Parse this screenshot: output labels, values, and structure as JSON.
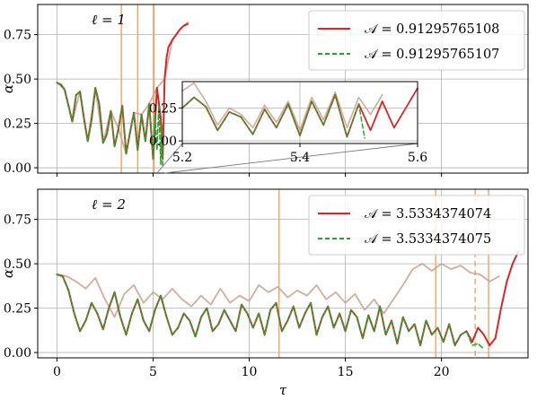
{
  "chart_data": [
    {
      "type": "line",
      "panel_label": "ℓ = 1",
      "xlabel": "",
      "ylabel": "α",
      "xlim": [
        -1.0,
        24.5
      ],
      "ylim": [
        -0.03,
        0.92
      ],
      "x_ticks": [
        0,
        5,
        10,
        15,
        20
      ],
      "y_ticks": [
        0.0,
        0.25,
        0.5,
        0.75
      ],
      "y_tick_labels": [
        "0.00",
        "0.25",
        "0.50",
        "0.75"
      ],
      "grid": true,
      "legend_position": "top-right",
      "vertical_lines": [
        3.35,
        4.2,
        5.05
      ],
      "series": [
        {
          "name": "𝒜 = 0.91295765108",
          "color": "#d62728",
          "style": "solid",
          "x": [
            0.0,
            0.2,
            0.4,
            0.6,
            0.8,
            1.0,
            1.2,
            1.4,
            1.6,
            1.8,
            2.0,
            2.2,
            2.4,
            2.6,
            2.8,
            3.0,
            3.2,
            3.4,
            3.6,
            3.8,
            4.0,
            4.2,
            4.4,
            4.6,
            4.8,
            5.0,
            5.2,
            5.4,
            5.5,
            5.6,
            5.7,
            5.8,
            6.0,
            6.2,
            6.4,
            6.6,
            6.8
          ],
          "y": [
            0.48,
            0.47,
            0.44,
            0.35,
            0.26,
            0.41,
            0.43,
            0.28,
            0.15,
            0.27,
            0.45,
            0.36,
            0.14,
            0.19,
            0.32,
            0.12,
            0.22,
            0.35,
            0.08,
            0.2,
            0.31,
            0.1,
            0.3,
            0.15,
            0.36,
            0.05,
            0.45,
            0.28,
            0.05,
            0.5,
            0.62,
            0.68,
            0.72,
            0.75,
            0.78,
            0.8,
            0.81
          ]
        },
        {
          "name": "𝒜 = 0.91295765107",
          "color": "#2ca02c",
          "style": "dashed",
          "x": [
            0.0,
            0.2,
            0.4,
            0.6,
            0.8,
            1.0,
            1.2,
            1.4,
            1.6,
            1.8,
            2.0,
            2.2,
            2.4,
            2.6,
            2.8,
            3.0,
            3.2,
            3.4,
            3.6,
            3.8,
            4.0,
            4.2,
            4.4,
            4.6,
            4.8,
            5.0,
            5.1,
            5.2,
            5.3,
            5.4,
            5.45,
            5.5
          ],
          "y": [
            0.48,
            0.47,
            0.44,
            0.35,
            0.26,
            0.41,
            0.43,
            0.28,
            0.15,
            0.27,
            0.45,
            0.36,
            0.14,
            0.19,
            0.32,
            0.12,
            0.22,
            0.35,
            0.08,
            0.2,
            0.31,
            0.1,
            0.3,
            0.15,
            0.36,
            0.05,
            0.3,
            0.1,
            0.35,
            0.02,
            0.25,
            0.0
          ]
        },
        {
          "name": "",
          "color": "#c8a08c",
          "style": "solid",
          "x": [
            0.0,
            0.4,
            0.8,
            1.2,
            1.6,
            2.0,
            2.4,
            2.8,
            3.2,
            3.6,
            4.0,
            4.4,
            4.8,
            5.2,
            5.6,
            6.0,
            6.4,
            6.8
          ],
          "y": [
            0.48,
            0.44,
            0.26,
            0.43,
            0.15,
            0.45,
            0.14,
            0.32,
            0.22,
            0.08,
            0.31,
            0.3,
            0.36,
            0.45,
            0.5,
            0.72,
            0.78,
            0.82
          ]
        }
      ],
      "inset": {
        "xlim": [
          5.2,
          5.6
        ],
        "ylim": [
          -0.02,
          0.45
        ],
        "x_ticks": [
          5.2,
          5.4,
          5.6
        ],
        "x_tick_labels": [
          "5.2",
          "5.4",
          "5.6"
        ],
        "y_ticks": [
          0.0,
          0.25
        ],
        "y_tick_labels": [
          "0.00",
          "0.25"
        ],
        "series": [
          {
            "name": "",
            "color": "#d62728",
            "style": "solid",
            "x": [
              5.2,
              5.22,
              5.24,
              5.26,
              5.28,
              5.3,
              5.32,
              5.34,
              5.36,
              5.38,
              5.4,
              5.42,
              5.44,
              5.46,
              5.48,
              5.5,
              5.52,
              5.54,
              5.56,
              5.58,
              5.6
            ],
            "y": [
              0.25,
              0.33,
              0.26,
              0.08,
              0.22,
              0.18,
              0.05,
              0.24,
              0.1,
              0.28,
              0.04,
              0.3,
              0.12,
              0.35,
              0.03,
              0.28,
              0.08,
              0.3,
              0.1,
              0.25,
              0.4
            ]
          },
          {
            "name": "",
            "color": "#2ca02c",
            "style": "dashed",
            "x": [
              5.2,
              5.22,
              5.24,
              5.26,
              5.28,
              5.3,
              5.32,
              5.34,
              5.36,
              5.38,
              5.4,
              5.42,
              5.44,
              5.46,
              5.48,
              5.5,
              5.51
            ],
            "y": [
              0.25,
              0.33,
              0.26,
              0.08,
              0.22,
              0.18,
              0.05,
              0.24,
              0.1,
              0.28,
              0.04,
              0.3,
              0.12,
              0.35,
              0.03,
              0.28,
              0.02
            ]
          },
          {
            "name": "",
            "color": "#c8a08c",
            "style": "solid",
            "x": [
              5.2,
              5.22,
              5.24,
              5.26,
              5.28,
              5.3,
              5.32,
              5.34,
              5.36,
              5.38,
              5.4,
              5.42,
              5.44,
              5.46,
              5.48,
              5.5,
              5.52,
              5.54
            ],
            "y": [
              0.38,
              0.44,
              0.3,
              0.12,
              0.25,
              0.2,
              0.1,
              0.27,
              0.14,
              0.3,
              0.08,
              0.33,
              0.16,
              0.37,
              0.1,
              0.33,
              0.2,
              0.35
            ]
          }
        ]
      }
    },
    {
      "type": "line",
      "panel_label": "ℓ = 2",
      "xlabel": "τ",
      "ylabel": "α",
      "xlim": [
        -1.0,
        24.5
      ],
      "ylim": [
        -0.03,
        0.92
      ],
      "x_ticks": [
        0,
        5,
        10,
        15,
        20
      ],
      "x_tick_labels": [
        "0",
        "5",
        "10",
        "15",
        "20"
      ],
      "y_ticks": [
        0.0,
        0.25,
        0.5,
        0.75
      ],
      "y_tick_labels": [
        "0.00",
        "0.25",
        "0.50",
        "0.75"
      ],
      "grid": true,
      "legend_position": "top-right",
      "vertical_lines": [
        11.55,
        19.7,
        22.45
      ],
      "dashed_vertical_lines": [
        21.75
      ],
      "series": [
        {
          "name": "𝒜 = 3.5334374074",
          "color": "#d62728",
          "style": "solid",
          "x": [
            0.0,
            0.3,
            0.6,
            0.9,
            1.2,
            1.5,
            1.8,
            2.1,
            2.4,
            2.7,
            3.0,
            3.3,
            3.6,
            3.9,
            4.2,
            4.5,
            4.8,
            5.1,
            5.4,
            5.7,
            6.0,
            6.3,
            6.6,
            6.9,
            7.2,
            7.5,
            7.8,
            8.1,
            8.4,
            8.7,
            9.0,
            9.3,
            9.6,
            9.9,
            10.2,
            10.5,
            10.8,
            11.1,
            11.4,
            11.7,
            12.0,
            12.3,
            12.6,
            12.9,
            13.2,
            13.5,
            13.8,
            14.1,
            14.4,
            14.7,
            15.0,
            15.3,
            15.6,
            15.9,
            16.2,
            16.5,
            16.8,
            17.1,
            17.4,
            17.7,
            18.0,
            18.3,
            18.6,
            18.9,
            19.2,
            19.5,
            19.8,
            20.1,
            20.4,
            20.7,
            21.0,
            21.3,
            21.6,
            21.9,
            22.2,
            22.5,
            22.8,
            23.1,
            23.4,
            23.7,
            24.0
          ],
          "y": [
            0.44,
            0.43,
            0.35,
            0.22,
            0.12,
            0.18,
            0.28,
            0.22,
            0.13,
            0.25,
            0.34,
            0.2,
            0.1,
            0.22,
            0.3,
            0.18,
            0.12,
            0.24,
            0.32,
            0.2,
            0.1,
            0.14,
            0.22,
            0.18,
            0.09,
            0.2,
            0.25,
            0.12,
            0.16,
            0.24,
            0.18,
            0.12,
            0.27,
            0.22,
            0.14,
            0.22,
            0.1,
            0.24,
            0.28,
            0.12,
            0.18,
            0.26,
            0.14,
            0.22,
            0.28,
            0.1,
            0.2,
            0.26,
            0.14,
            0.22,
            0.12,
            0.24,
            0.2,
            0.08,
            0.21,
            0.12,
            0.26,
            0.1,
            0.18,
            0.05,
            0.2,
            0.12,
            0.16,
            0.04,
            0.18,
            0.1,
            0.14,
            0.06,
            0.16,
            0.04,
            0.1,
            0.12,
            0.06,
            0.14,
            0.1,
            0.04,
            0.08,
            0.25,
            0.4,
            0.5,
            0.57
          ]
        },
        {
          "name": "𝒜 = 3.5334374075",
          "color": "#2ca02c",
          "style": "dashed",
          "x": [
            0.0,
            0.3,
            0.6,
            0.9,
            1.2,
            1.5,
            1.8,
            2.1,
            2.4,
            2.7,
            3.0,
            3.3,
            3.6,
            3.9,
            4.2,
            4.5,
            4.8,
            5.1,
            5.4,
            5.7,
            6.0,
            6.3,
            6.6,
            6.9,
            7.2,
            7.5,
            7.8,
            8.1,
            8.4,
            8.7,
            9.0,
            9.3,
            9.6,
            9.9,
            10.2,
            10.5,
            10.8,
            11.1,
            11.4,
            11.7,
            12.0,
            12.3,
            12.6,
            12.9,
            13.2,
            13.5,
            13.8,
            14.1,
            14.4,
            14.7,
            15.0,
            15.3,
            15.6,
            15.9,
            16.2,
            16.5,
            16.8,
            17.1,
            17.4,
            17.7,
            18.0,
            18.3,
            18.6,
            18.9,
            19.2,
            19.5,
            19.8,
            20.1,
            20.4,
            20.7,
            21.0,
            21.3,
            21.6,
            21.9,
            22.2
          ],
          "y": [
            0.44,
            0.43,
            0.35,
            0.22,
            0.12,
            0.18,
            0.28,
            0.22,
            0.13,
            0.25,
            0.34,
            0.2,
            0.1,
            0.22,
            0.3,
            0.18,
            0.12,
            0.24,
            0.32,
            0.2,
            0.1,
            0.14,
            0.22,
            0.18,
            0.09,
            0.2,
            0.25,
            0.12,
            0.16,
            0.24,
            0.18,
            0.12,
            0.27,
            0.22,
            0.14,
            0.22,
            0.1,
            0.24,
            0.28,
            0.12,
            0.18,
            0.26,
            0.14,
            0.22,
            0.28,
            0.1,
            0.2,
            0.26,
            0.14,
            0.22,
            0.12,
            0.24,
            0.2,
            0.08,
            0.21,
            0.12,
            0.26,
            0.1,
            0.18,
            0.05,
            0.2,
            0.12,
            0.16,
            0.04,
            0.18,
            0.1,
            0.14,
            0.06,
            0.16,
            0.04,
            0.1,
            0.12,
            0.04,
            0.05,
            0.02
          ]
        },
        {
          "name": "",
          "color": "#c8a08c",
          "style": "solid",
          "x": [
            0.0,
            0.5,
            1.0,
            1.5,
            2.0,
            2.5,
            3.0,
            3.5,
            4.0,
            4.5,
            5.0,
            5.5,
            6.0,
            6.5,
            7.0,
            7.5,
            8.0,
            8.5,
            9.0,
            9.5,
            10.0,
            10.5,
            11.0,
            11.5,
            12.0,
            12.5,
            13.0,
            13.5,
            14.0,
            14.5,
            15.0,
            15.5,
            16.0,
            16.5,
            17.0,
            17.5,
            18.0,
            18.5,
            19.0,
            19.5,
            20.0,
            20.5,
            21.0,
            21.5,
            22.0,
            22.5,
            23.0
          ],
          "y": [
            0.44,
            0.43,
            0.4,
            0.36,
            0.42,
            0.3,
            0.2,
            0.33,
            0.38,
            0.28,
            0.34,
            0.3,
            0.36,
            0.3,
            0.26,
            0.32,
            0.27,
            0.36,
            0.28,
            0.32,
            0.29,
            0.38,
            0.34,
            0.37,
            0.31,
            0.35,
            0.32,
            0.38,
            0.3,
            0.34,
            0.28,
            0.33,
            0.24,
            0.3,
            0.22,
            0.3,
            0.38,
            0.47,
            0.5,
            0.46,
            0.5,
            0.47,
            0.49,
            0.45,
            0.44,
            0.4,
            0.43
          ]
        }
      ]
    }
  ]
}
